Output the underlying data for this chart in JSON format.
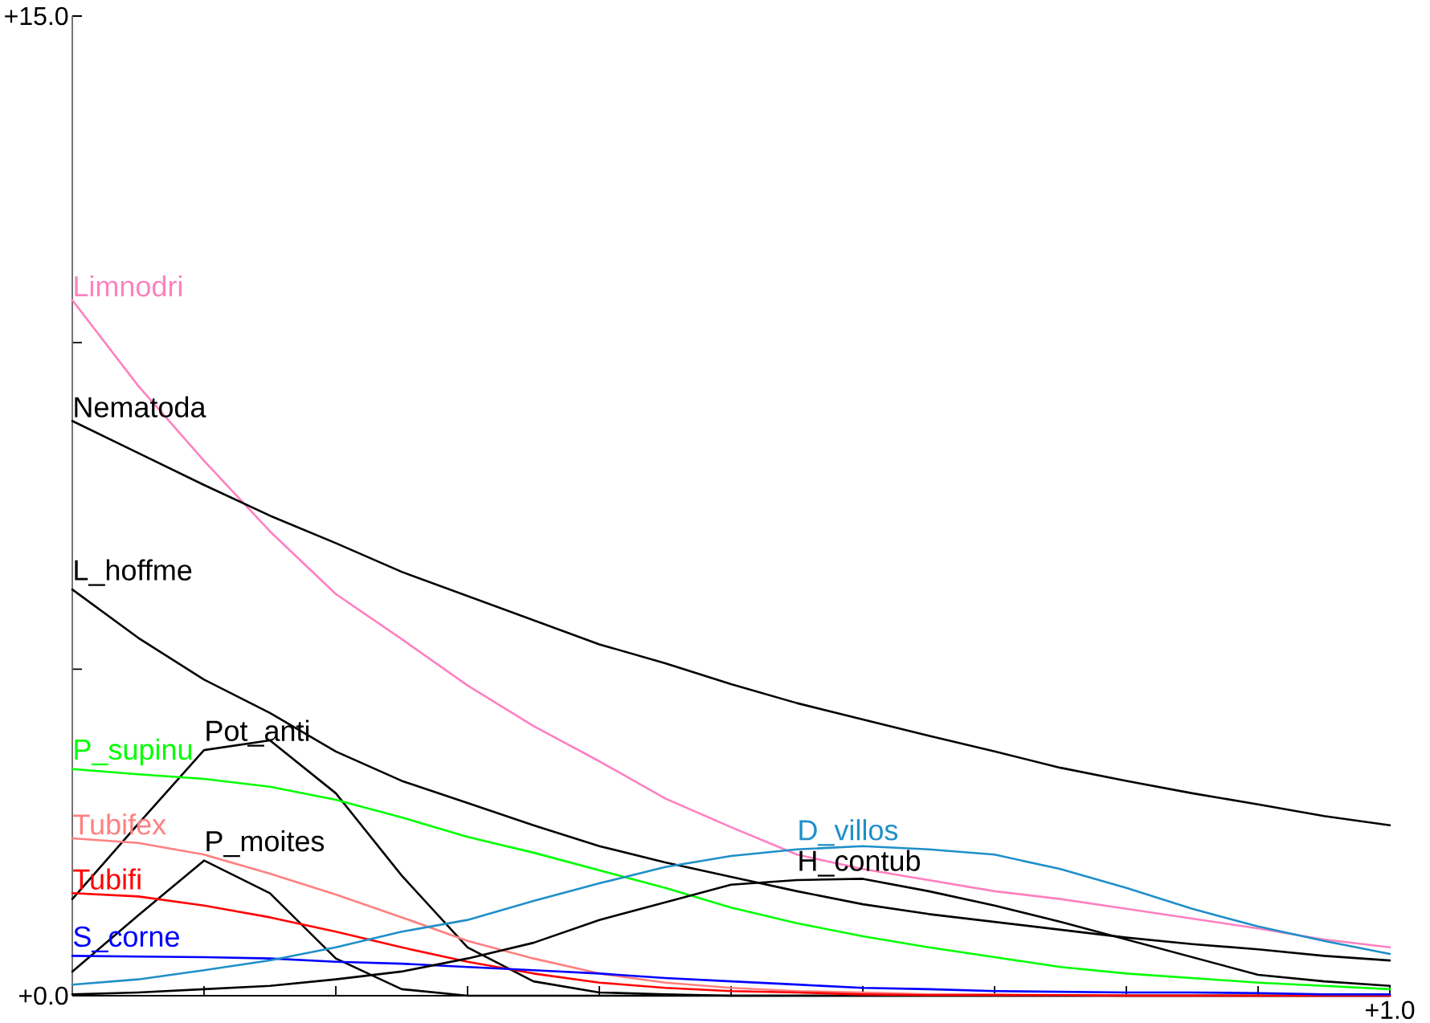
{
  "chart_data": {
    "type": "line",
    "categories": [
      null,
      null,
      null,
      null,
      null,
      null,
      null,
      null,
      null,
      null,
      null,
      null,
      null,
      null,
      null,
      null,
      null,
      null,
      null,
      null,
      null
    ],
    "series": [
      {
        "name": "Limnodri",
        "color": "#ff80c0",
        "values": [
          10.65,
          9.34,
          8.19,
          7.11,
          6.15,
          5.46,
          4.75,
          4.13,
          3.59,
          3.02,
          2.58,
          2.16,
          1.94,
          1.77,
          1.6,
          1.48,
          1.33,
          1.18,
          1.03,
          0.86,
          0.74
        ]
      },
      {
        "name": "Nematoda",
        "color": "#000000",
        "values": [
          8.8,
          8.31,
          7.82,
          7.35,
          6.93,
          6.49,
          6.12,
          5.75,
          5.38,
          5.09,
          4.77,
          4.48,
          4.23,
          3.98,
          3.74,
          3.49,
          3.29,
          3.1,
          2.93,
          2.75,
          2.61
        ]
      },
      {
        "name": "L_hoffme",
        "color": "#000000",
        "values": [
          6.22,
          5.48,
          4.84,
          4.33,
          3.74,
          3.29,
          2.95,
          2.61,
          2.29,
          2.04,
          1.82,
          1.6,
          1.4,
          1.25,
          1.13,
          1.01,
          0.89,
          0.79,
          0.71,
          0.61,
          0.54
        ]
      },
      {
        "name": "Pot_anti",
        "color": "#000000",
        "values": [
          1.48,
          2.63,
          3.76,
          3.91,
          3.1,
          1.84,
          0.74,
          0.22,
          0.05,
          0.02,
          0,
          0,
          0,
          0,
          0,
          0,
          0,
          0,
          0,
          0,
          0
        ]
      },
      {
        "name": "P_supinu",
        "color": "#00ff00",
        "values": [
          3.47,
          3.39,
          3.32,
          3.2,
          3.0,
          2.73,
          2.43,
          2.19,
          1.92,
          1.65,
          1.35,
          1.11,
          0.91,
          0.74,
          0.59,
          0.44,
          0.34,
          0.27,
          0.2,
          0.15,
          0.1
        ]
      },
      {
        "name": "Tubifex",
        "color": "#ff8080",
        "values": [
          2.41,
          2.34,
          2.16,
          1.87,
          1.55,
          1.2,
          0.84,
          0.57,
          0.34,
          0.2,
          0.12,
          0.07,
          0.05,
          0.02,
          0.02,
          0.01,
          0.01,
          0.01,
          0,
          0,
          0
        ]
      },
      {
        "name": "P_moites",
        "color": "#000000",
        "values": [
          0.37,
          1.23,
          2.07,
          1.57,
          0.57,
          0.1,
          0,
          0,
          0,
          0,
          0,
          0,
          0,
          0,
          0,
          0,
          0,
          0,
          0,
          0,
          0
        ]
      },
      {
        "name": "Tubifi",
        "color": "#ff0000",
        "values": [
          1.57,
          1.52,
          1.38,
          1.2,
          0.98,
          0.74,
          0.52,
          0.34,
          0.2,
          0.12,
          0.07,
          0.05,
          0.02,
          0.01,
          0.01,
          0.01,
          0,
          0,
          0,
          0,
          0
        ]
      },
      {
        "name": "S_corne",
        "color": "#0000ff",
        "values": [
          0.61,
          0.6,
          0.59,
          0.57,
          0.52,
          0.49,
          0.44,
          0.39,
          0.34,
          0.27,
          0.22,
          0.17,
          0.12,
          0.1,
          0.07,
          0.06,
          0.05,
          0.05,
          0.04,
          0.02,
          0.02
        ]
      },
      {
        "name": "D_villos",
        "color": "#1f8fc8",
        "values": [
          0.17,
          0.25,
          0.39,
          0.54,
          0.74,
          0.98,
          1.16,
          1.45,
          1.72,
          1.97,
          2.14,
          2.24,
          2.29,
          2.24,
          2.16,
          1.94,
          1.65,
          1.33,
          1.06,
          0.84,
          0.64
        ]
      },
      {
        "name": "H_contub",
        "color": "#000000",
        "values": [
          0.02,
          0.05,
          0.1,
          0.15,
          0.25,
          0.37,
          0.57,
          0.81,
          1.16,
          1.43,
          1.7,
          1.77,
          1.79,
          1.6,
          1.38,
          1.13,
          0.86,
          0.59,
          0.32,
          0.22,
          0.15
        ]
      }
    ],
    "ylim": [
      0,
      15
    ],
    "yticks": [
      {
        "value": 0,
        "label": "+0.0"
      },
      {
        "value": 5,
        "label": null
      },
      {
        "value": 10,
        "label": null
      },
      {
        "value": 15,
        "label": "+15.0"
      }
    ],
    "annotations": [
      "+1.0"
    ],
    "grid": false,
    "legend": false,
    "marker": "none",
    "line_style": "solid"
  }
}
